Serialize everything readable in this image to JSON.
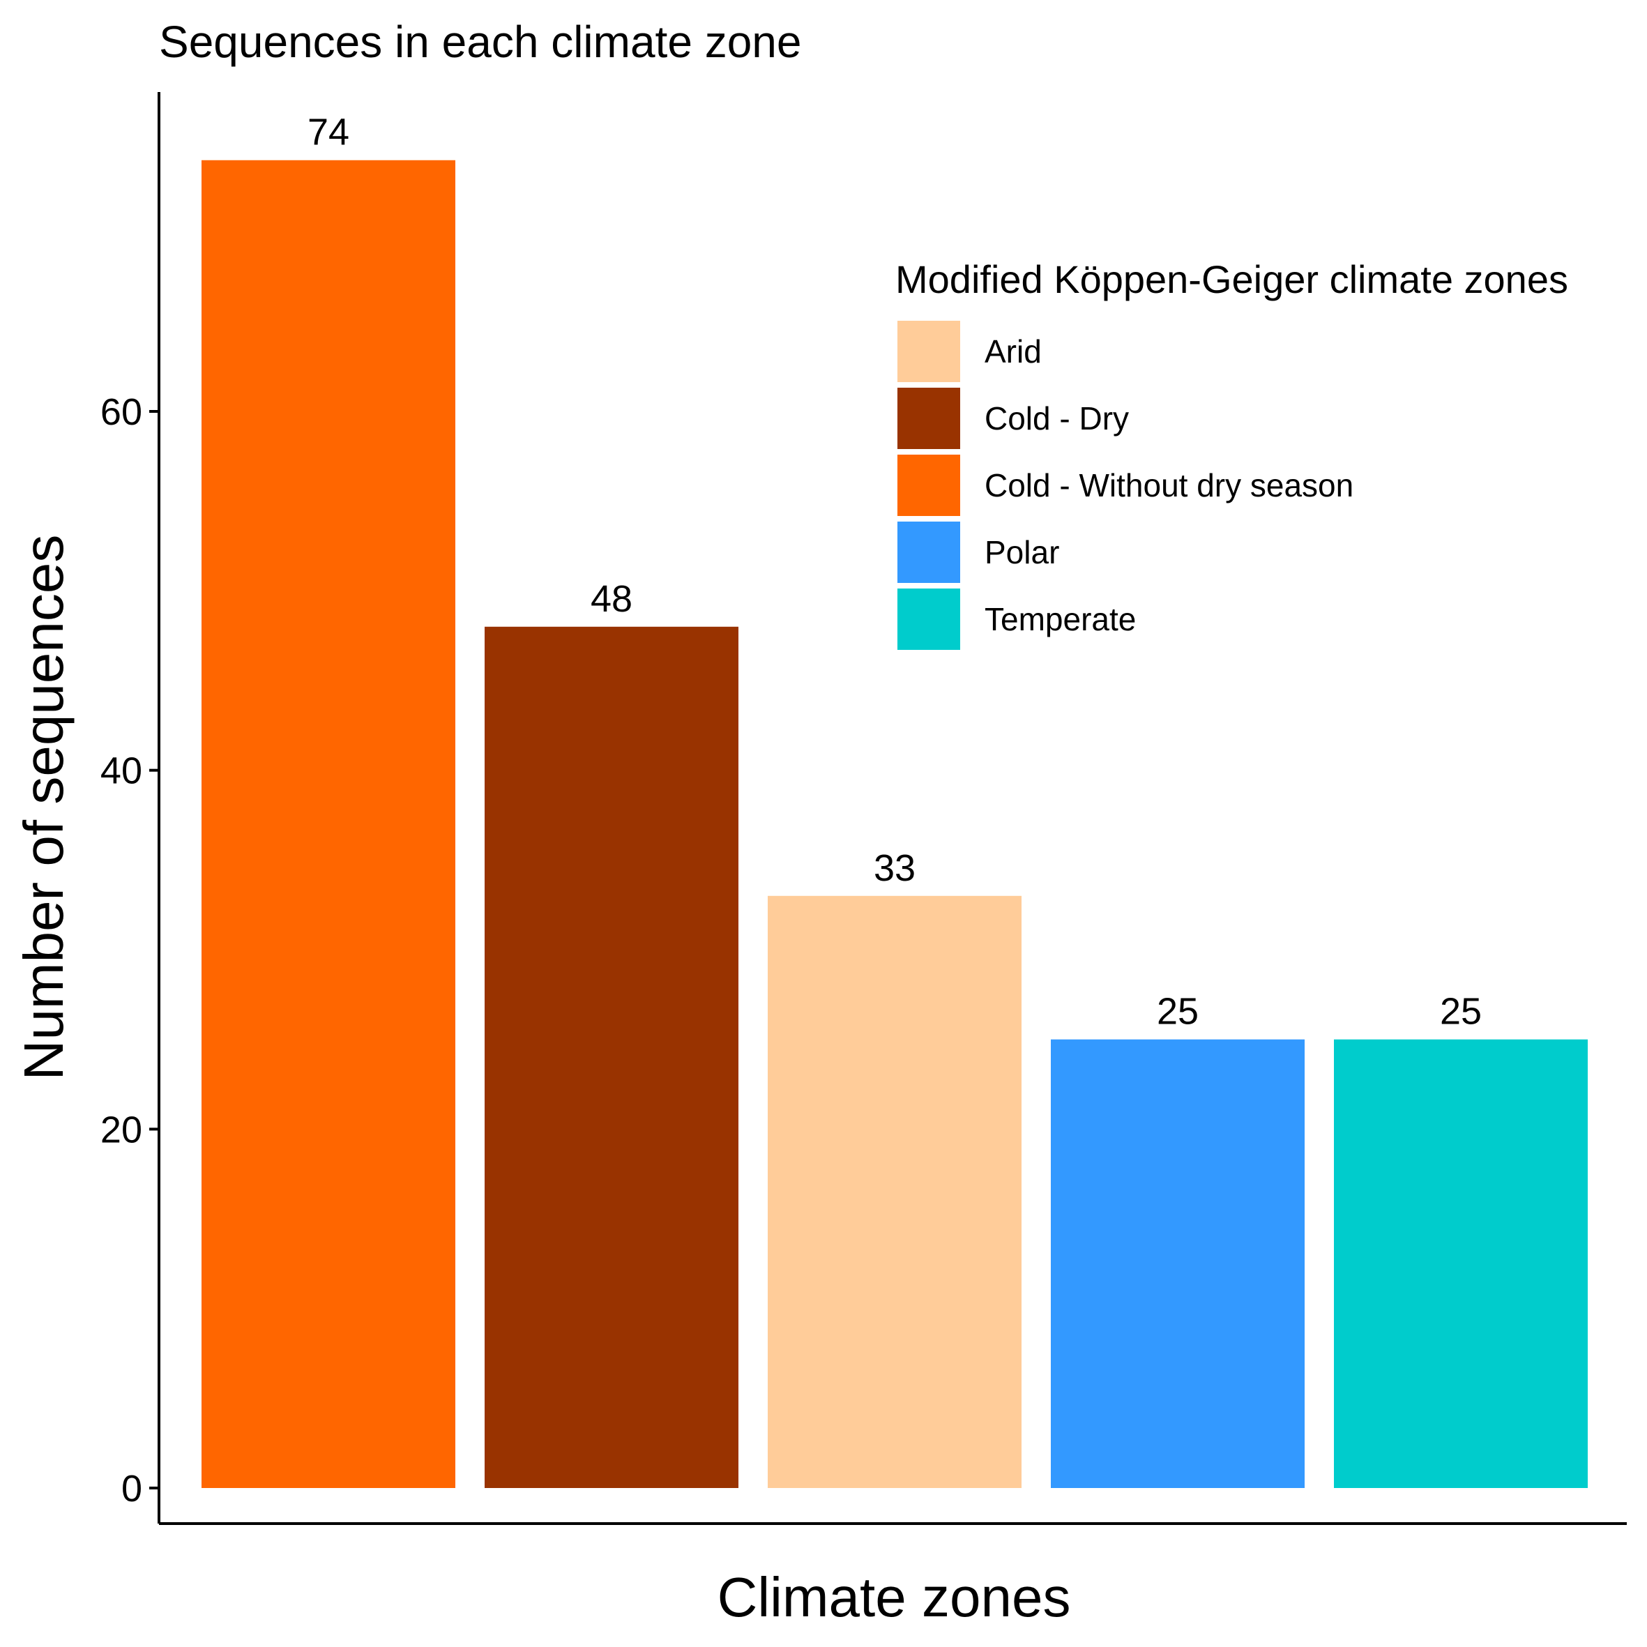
{
  "chart_data": {
    "type": "bar",
    "title": "Sequences in each climate zone",
    "xlabel": "Climate zones",
    "ylabel": "Number of sequences",
    "categories": [
      "Cold - Without dry season",
      "Cold - Dry",
      "Arid",
      "Polar",
      "Temperate"
    ],
    "values": [
      74,
      48,
      33,
      25,
      25
    ],
    "bar_colors": [
      "#FF6600",
      "#993300",
      "#FFCC99",
      "#3399FF",
      "#00CCCC"
    ],
    "ylim": [
      -4,
      79
    ],
    "yticks": [
      0,
      20,
      40,
      60
    ],
    "x_tick_labels_shown": false,
    "grid": false,
    "legend": {
      "title": "Modified Köppen-Geiger climate zones",
      "placement": "top-right",
      "items": [
        {
          "label": "Arid",
          "color": "#FFCC99"
        },
        {
          "label": "Cold - Dry",
          "color": "#993300"
        },
        {
          "label": "Cold - Without dry season",
          "color": "#FF6600"
        },
        {
          "label": "Polar",
          "color": "#3399FF"
        },
        {
          "label": "Temperate",
          "color": "#00CCCC"
        }
      ]
    }
  }
}
